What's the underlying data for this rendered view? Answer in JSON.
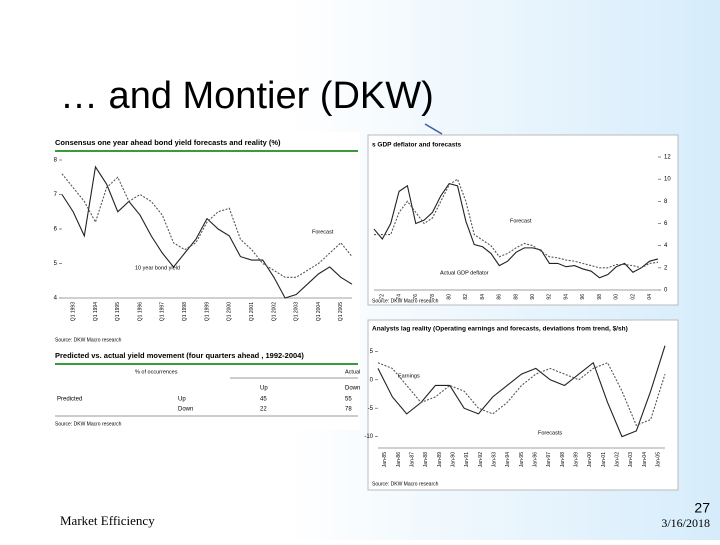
{
  "slide": {
    "title": "… and Montier (DKW)",
    "footer": "Market Efficiency",
    "page_number": "27",
    "date": "3/16/2018"
  },
  "figures": [
    {
      "title": "Consensus one year ahead bond yield forecasts and reality (%)",
      "ylim": [
        4,
        8
      ],
      "yticks": [
        8,
        7,
        6,
        5,
        4
      ],
      "tick_side": "left",
      "x_labels": [
        "Q1 1993",
        "Q1 1994",
        "Q1 1995",
        "Q1 1996",
        "Q1 1997",
        "Q1 1998",
        "Q1 1999",
        "Q1 2000",
        "Q1 2001",
        "Q1 2002",
        "Q1 2003",
        "Q1 2004",
        "Q1 2005"
      ],
      "series": [
        {
          "color": "#222222",
          "style": "solid",
          "values": [
            7.0,
            6.5,
            5.8,
            7.8,
            7.3,
            6.5,
            6.8,
            6.4,
            5.8,
            5.3,
            4.9,
            5.3,
            5.7,
            6.3,
            6.0,
            5.8,
            5.2,
            5.1,
            5.1,
            4.6,
            4.0,
            4.1,
            4.4,
            4.7,
            4.9,
            4.6,
            4.4
          ]
        },
        {
          "color": "#555555",
          "style": "dashed",
          "values": [
            7.6,
            7.2,
            6.8,
            6.2,
            7.2,
            7.5,
            6.8,
            7.0,
            6.8,
            6.4,
            5.6,
            5.4,
            5.6,
            6.2,
            6.5,
            6.6,
            5.7,
            5.4,
            5.0,
            4.8,
            4.6,
            4.6,
            4.8,
            5.0,
            5.3,
            5.6,
            5.2
          ]
        }
      ],
      "annotations": [
        "Forecast",
        "10 year bond yield"
      ],
      "source": "Source: DKW Macro research"
    },
    {
      "title": "s GDP deflator and forecasts",
      "ylim": [
        0,
        12
      ],
      "yticks": [
        12,
        10,
        8,
        6,
        4,
        2,
        0
      ],
      "tick_side": "right",
      "x_labels": [
        "72",
        "74",
        "76",
        "78",
        "80",
        "82",
        "84",
        "86",
        "88",
        "90",
        "92",
        "94",
        "96",
        "98",
        "00",
        "02",
        "04"
      ],
      "series": [
        {
          "color": "#222222",
          "style": "solid",
          "values": [
            5.5,
            4.6,
            6,
            8.9,
            9.4,
            6,
            6.3,
            7,
            8.5,
            9.6,
            9.4,
            6.2,
            4.1,
            3.9,
            3.3,
            2.2,
            2.6,
            3.4,
            3.8,
            3.8,
            3.6,
            2.4,
            2.4,
            2.1,
            2.2,
            1.9,
            1.7,
            1.1,
            1.4,
            2.1,
            2.4,
            1.6,
            2,
            2.6,
            2.8
          ]
        },
        {
          "color": "#555555",
          "style": "dashed",
          "values": [
            5,
            5,
            5,
            7,
            8,
            7,
            6,
            6.5,
            8,
            9.5,
            10,
            8,
            5,
            4.5,
            4,
            3,
            3.3,
            3.8,
            4.2,
            4,
            3.5,
            3,
            2.9,
            2.7,
            2.6,
            2.4,
            2.2,
            2,
            2,
            2.3,
            2.3,
            2.2,
            2,
            2.4,
            2.5
          ]
        }
      ],
      "annotations": [
        "Forecast",
        "Actual GDP deflator"
      ],
      "source": "Source: DKW Macro research"
    },
    {
      "title": "Analysts lag reality (Operating earnings and forecasts, deviations from trend, $/sh)",
      "ylim": [
        -12,
        7
      ],
      "yticks": [
        5,
        0,
        -5,
        -10
      ],
      "tick_side": "left",
      "x_labels": [
        "Jan-85",
        "Jan-86",
        "Jan-87",
        "Jan-88",
        "Jan-89",
        "Jan-90",
        "Jan-91",
        "Jan-92",
        "Jan-93",
        "Jan-94",
        "Jan-95",
        "Jan-96",
        "Jan-97",
        "Jan-98",
        "Jan-99",
        "Jan-00",
        "Jan-01",
        "Jan-02",
        "Jan-03",
        "Jan-04",
        "Jan-05"
      ],
      "series": [
        {
          "color": "#222222",
          "style": "solid",
          "values": [
            2,
            -3,
            -6,
            -4,
            -1,
            -1,
            -5,
            -6,
            -3,
            -1,
            1,
            2,
            0,
            -1,
            1,
            3,
            -4,
            -10,
            -9,
            -2,
            6
          ]
        },
        {
          "color": "#555555",
          "style": "dashed",
          "values": [
            3,
            2,
            -1,
            -4,
            -3,
            -1,
            -2,
            -5,
            -6,
            -4,
            -1,
            1,
            2,
            1,
            0,
            2,
            3,
            -2,
            -8,
            -7,
            1
          ]
        }
      ],
      "annotations": [
        "Earnings",
        "Forecasts"
      ],
      "source": "Source: DKW Macro research"
    }
  ],
  "table": {
    "title": "Predicted vs. actual yield movement (four quarters ahead , 1992-2004)",
    "unit": "% of occurrences",
    "col_group": "Actual",
    "columns": [
      "Up",
      "Down"
    ],
    "row_group": "Predicted",
    "rows": [
      [
        "Up",
        "45",
        "55"
      ],
      [
        "Down",
        "22",
        "78"
      ]
    ],
    "source": "Source: DKW Macro research"
  }
}
